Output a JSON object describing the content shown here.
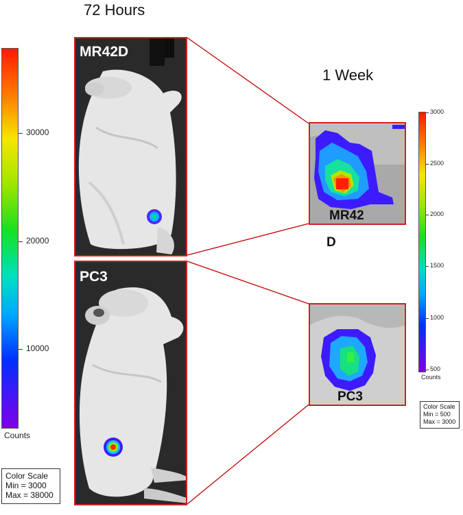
{
  "headings": {
    "left_time": "72 Hours",
    "right_time": "1 Week"
  },
  "panels": {
    "top_mouse": {
      "label": "MR42D"
    },
    "bottom_mouse": {
      "label": "PC3"
    },
    "zoom_top": {
      "label_line1": "MR42",
      "label_line2": "D"
    },
    "zoom_bottom": {
      "label": "PC3"
    }
  },
  "left_scale": {
    "ticks": [
      "30000",
      "20000",
      "10000"
    ],
    "units": "Counts",
    "box_title": "Color Scale",
    "box_min": "Min = 3000",
    "box_max": "Max = 38000"
  },
  "right_scale": {
    "ticks": [
      "3000",
      "2500",
      "2000",
      "1500",
      "1000",
      "500"
    ],
    "units": "Counts",
    "box_title": "Color Scale",
    "box_min": "Min = 500",
    "box_max": "Max = 3000"
  },
  "colors": {
    "frame": "#d02020",
    "connector": "#c00000"
  }
}
